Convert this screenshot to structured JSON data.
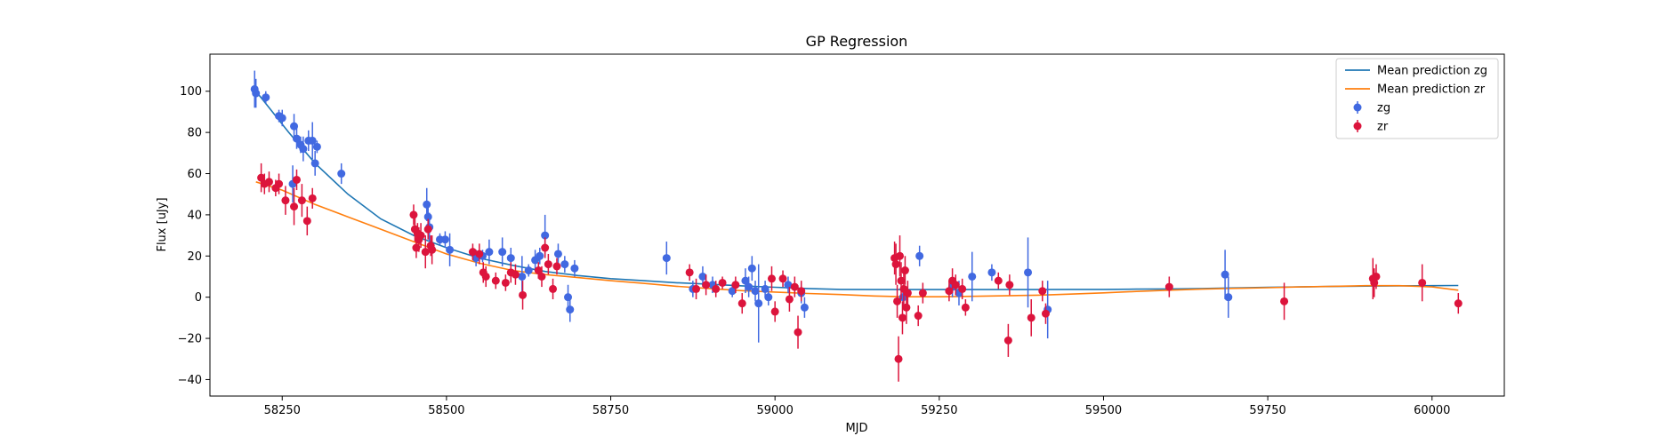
{
  "chart_data": {
    "type": "scatter",
    "title": "GP Regression",
    "xlabel": "MJD",
    "ylabel": "Flux [uJy]",
    "xlim": [
      58140,
      60110
    ],
    "ylim": [
      -48,
      118
    ],
    "xticks": [
      58250,
      58500,
      58750,
      59000,
      59250,
      59500,
      59750,
      60000
    ],
    "yticks": [
      -40,
      -20,
      0,
      20,
      40,
      60,
      80,
      100
    ],
    "grid": false,
    "legend_position": "top-right",
    "legend": [
      {
        "label": "Mean prediction zg",
        "kind": "line",
        "color": "#1f77b4"
      },
      {
        "label": "Mean prediction zr",
        "kind": "line",
        "color": "#ff7f0e"
      },
      {
        "label": "zg",
        "kind": "errorbar",
        "color": "#4169e1"
      },
      {
        "label": "zr",
        "kind": "errorbar",
        "color": "#dc143c"
      }
    ],
    "lines": [
      {
        "name": "Mean prediction zg",
        "color": "#1f77b4",
        "x": [
          58210,
          58230,
          58260,
          58300,
          58350,
          58400,
          58450,
          58500,
          58550,
          58600,
          58650,
          58700,
          58750,
          58800,
          58850,
          58900,
          58950,
          59000,
          59050,
          59100,
          59150,
          59200,
          59250,
          59300,
          59350,
          59400,
          59450,
          59500,
          59550,
          59600,
          59650,
          59700,
          59750,
          59800,
          59850,
          59900,
          59950,
          60000,
          60040
        ],
        "y": [
          100,
          92,
          80,
          65,
          50,
          38,
          30,
          24,
          19,
          15.5,
          12.5,
          10.5,
          9,
          8,
          7,
          6.3,
          5.5,
          4.8,
          4.2,
          3.8,
          3.7,
          3.7,
          3.7,
          3.7,
          3.7,
          3.7,
          3.8,
          3.8,
          3.9,
          4.0,
          4.2,
          4.5,
          4.8,
          5.0,
          5.2,
          5.4,
          5.5,
          5.6,
          5.7
        ]
      },
      {
        "name": "Mean prediction zr",
        "color": "#ff7f0e",
        "x": [
          58210,
          58250,
          58300,
          58350,
          58400,
          58450,
          58500,
          58550,
          58600,
          58650,
          58700,
          58750,
          58800,
          58850,
          58900,
          58950,
          59000,
          59050,
          59100,
          59150,
          59200,
          59250,
          59300,
          59350,
          59400,
          59450,
          59500,
          59550,
          59600,
          59650,
          59700,
          59750,
          59800,
          59850,
          59900,
          59950,
          60000,
          60040
        ],
        "y": [
          56,
          52,
          45,
          39,
          33,
          27,
          21,
          16.5,
          13,
          11,
          9.5,
          8,
          6.7,
          5.3,
          4.2,
          3.2,
          2.5,
          1.8,
          1.3,
          0.6,
          0.2,
          0.2,
          0.4,
          0.7,
          1.0,
          1.5,
          2.1,
          2.8,
          3.4,
          3.9,
          4.3,
          4.6,
          5.0,
          5.3,
          5.6,
          5.6,
          5.0,
          3.4
        ]
      }
    ],
    "series": [
      {
        "name": "zg",
        "color": "#4169e1",
        "points": [
          [
            58208,
            101,
            9
          ],
          [
            58210,
            99,
            7
          ],
          [
            58225,
            97,
            3
          ],
          [
            58245,
            88,
            3
          ],
          [
            58250,
            87,
            4
          ],
          [
            58268,
            83,
            6
          ],
          [
            58272,
            77,
            5
          ],
          [
            58278,
            74,
            4
          ],
          [
            58282,
            72,
            6
          ],
          [
            58290,
            76,
            5
          ],
          [
            58296,
            76,
            9
          ],
          [
            58300,
            65,
            6
          ],
          [
            58303,
            73,
            3
          ],
          [
            58340,
            60,
            5
          ],
          [
            58266,
            55,
            9
          ],
          [
            58470,
            45,
            8
          ],
          [
            58472,
            39,
            6
          ],
          [
            58474,
            34,
            7
          ],
          [
            58490,
            28,
            3
          ],
          [
            58498,
            28,
            4
          ],
          [
            58505,
            23,
            8
          ],
          [
            58545,
            19,
            4
          ],
          [
            58555,
            20,
            3
          ],
          [
            58565,
            22,
            6
          ],
          [
            58585,
            22,
            7
          ],
          [
            58598,
            19,
            5
          ],
          [
            58615,
            10,
            10
          ],
          [
            58625,
            13,
            3
          ],
          [
            58635,
            18,
            5
          ],
          [
            58642,
            20,
            4
          ],
          [
            58650,
            30,
            10
          ],
          [
            58670,
            21,
            5
          ],
          [
            58680,
            16,
            4
          ],
          [
            58685,
            0,
            6
          ],
          [
            58688,
            -6,
            6
          ],
          [
            58695,
            14,
            4
          ],
          [
            58835,
            19,
            8
          ],
          [
            58875,
            4,
            4
          ],
          [
            58890,
            10,
            5
          ],
          [
            58905,
            6,
            4
          ],
          [
            58935,
            3,
            3
          ],
          [
            58955,
            8,
            6
          ],
          [
            58960,
            5,
            5
          ],
          [
            58965,
            14,
            6
          ],
          [
            58970,
            3,
            5
          ],
          [
            58975,
            -3,
            19
          ],
          [
            58985,
            4,
            4
          ],
          [
            58990,
            0,
            4
          ],
          [
            59020,
            6,
            4
          ],
          [
            59040,
            2,
            5
          ],
          [
            59045,
            -5,
            5
          ],
          [
            59195,
            0,
            5
          ],
          [
            59220,
            20,
            5
          ],
          [
            59270,
            5,
            5
          ],
          [
            59280,
            2,
            6
          ],
          [
            59300,
            10,
            12
          ],
          [
            59330,
            12,
            4
          ],
          [
            59385,
            12,
            17
          ],
          [
            59415,
            -6,
            14
          ],
          [
            59685,
            11,
            12
          ],
          [
            59690,
            0,
            10
          ]
        ]
      },
      {
        "name": "zr",
        "color": "#dc143c",
        "points": [
          [
            58218,
            58,
            7
          ],
          [
            58223,
            55,
            5
          ],
          [
            58230,
            56,
            5
          ],
          [
            58240,
            53,
            4
          ],
          [
            58245,
            55,
            5
          ],
          [
            58255,
            47,
            7
          ],
          [
            58268,
            44,
            9
          ],
          [
            58272,
            57,
            5
          ],
          [
            58280,
            47,
            8
          ],
          [
            58288,
            37,
            7
          ],
          [
            58296,
            48,
            5
          ],
          [
            58450,
            40,
            5
          ],
          [
            58452,
            33,
            6
          ],
          [
            58454,
            24,
            5
          ],
          [
            58456,
            31,
            5
          ],
          [
            58458,
            28,
            6
          ],
          [
            58461,
            30,
            6
          ],
          [
            58468,
            22,
            8
          ],
          [
            58472,
            33,
            5
          ],
          [
            58476,
            25,
            5
          ],
          [
            58478,
            23,
            7
          ],
          [
            58540,
            22,
            4
          ],
          [
            58550,
            21,
            5
          ],
          [
            58556,
            12,
            5
          ],
          [
            58560,
            10,
            5
          ],
          [
            58575,
            8,
            4
          ],
          [
            58590,
            7,
            4
          ],
          [
            58598,
            12,
            5
          ],
          [
            58605,
            11,
            5
          ],
          [
            58616,
            1,
            7
          ],
          [
            58640,
            13,
            4
          ],
          [
            58645,
            10,
            5
          ],
          [
            58650,
            24,
            5
          ],
          [
            58655,
            16,
            5
          ],
          [
            58662,
            4,
            5
          ],
          [
            58668,
            15,
            4
          ],
          [
            58870,
            12,
            4
          ],
          [
            58880,
            4,
            5
          ],
          [
            58895,
            6,
            5
          ],
          [
            58910,
            4,
            4
          ],
          [
            58920,
            7,
            3
          ],
          [
            58940,
            6,
            4
          ],
          [
            58950,
            -3,
            5
          ],
          [
            58995,
            9,
            6
          ],
          [
            59000,
            -7,
            5
          ],
          [
            59012,
            9,
            4
          ],
          [
            59022,
            -1,
            6
          ],
          [
            59030,
            5,
            5
          ],
          [
            59035,
            -17,
            8
          ],
          [
            59040,
            3,
            5
          ],
          [
            59182,
            19,
            8
          ],
          [
            59184,
            16,
            10
          ],
          [
            59186,
            -2,
            8
          ],
          [
            59188,
            -30,
            11
          ],
          [
            59190,
            20,
            10
          ],
          [
            59192,
            8,
            9
          ],
          [
            59194,
            -10,
            8
          ],
          [
            59196,
            4,
            9
          ],
          [
            59198,
            13,
            7
          ],
          [
            59200,
            -5,
            8
          ],
          [
            59202,
            2,
            6
          ],
          [
            59218,
            -9,
            5
          ],
          [
            59225,
            2,
            5
          ],
          [
            59265,
            3,
            5
          ],
          [
            59270,
            8,
            6
          ],
          [
            59275,
            6,
            5
          ],
          [
            59285,
            4,
            5
          ],
          [
            59290,
            -5,
            4
          ],
          [
            59340,
            8,
            4
          ],
          [
            59355,
            -21,
            8
          ],
          [
            59357,
            6,
            5
          ],
          [
            59390,
            -10,
            9
          ],
          [
            59407,
            3,
            5
          ],
          [
            59412,
            -8,
            5
          ],
          [
            59600,
            5,
            5
          ],
          [
            59775,
            -2,
            9
          ],
          [
            59910,
            9,
            10
          ],
          [
            59912,
            7,
            7
          ],
          [
            59915,
            10,
            6
          ],
          [
            59985,
            7,
            9
          ],
          [
            60040,
            -3,
            5
          ]
        ]
      }
    ]
  }
}
